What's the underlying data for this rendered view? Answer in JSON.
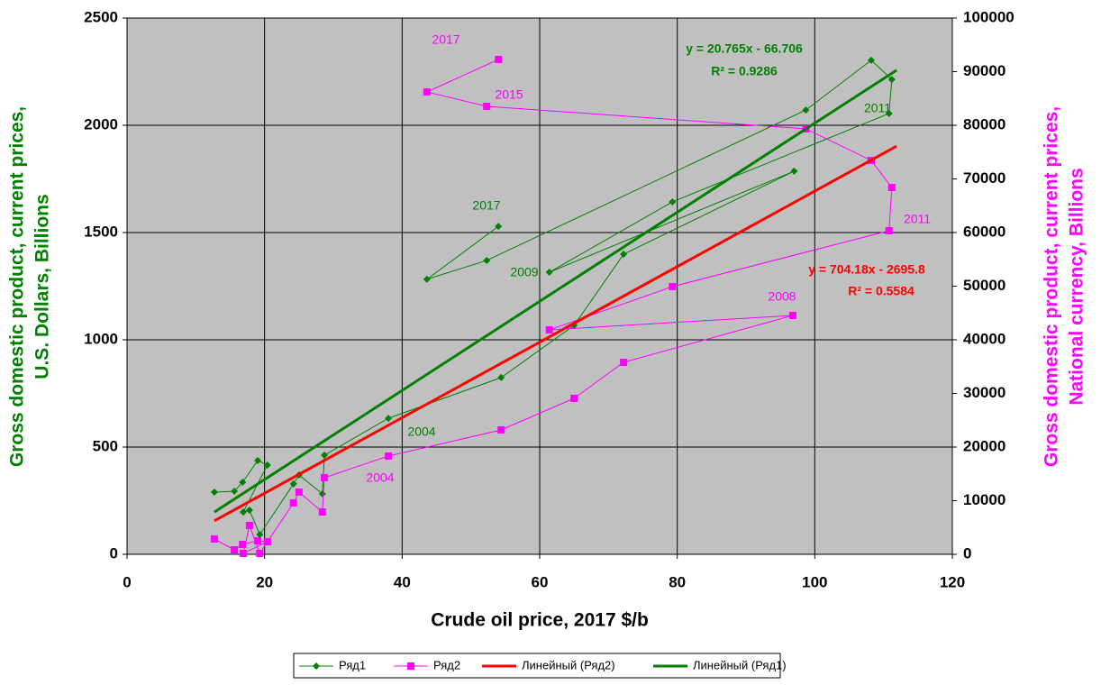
{
  "chart_data": {
    "type": "scatter",
    "x_label": "Crude oil price, 2017 $/b",
    "y_label": [
      "Gross domestic product, current prices,",
      "U.S. Dollars, Billions"
    ],
    "y2_label": [
      "Gross domestic product, current prices,",
      "National currency, Billions"
    ],
    "xlim": [
      0,
      120
    ],
    "xticks": [
      0,
      20,
      40,
      60,
      80,
      100,
      120
    ],
    "ylim": [
      0,
      2500
    ],
    "yticks": [
      0,
      500,
      1000,
      1500,
      2000,
      2500
    ],
    "y2lim": [
      0,
      100000
    ],
    "y2ticks": [
      0,
      10000,
      20000,
      30000,
      40000,
      50000,
      60000,
      70000,
      80000,
      90000,
      100000
    ],
    "grid": true,
    "legend": "bottom",
    "series": [
      {
        "name": "Ряд1",
        "color": "#008000",
        "marker": "diamond",
        "x": [
          12.7,
          15.6,
          16.8,
          19.0,
          20.4,
          16.9,
          17.8,
          19.3,
          24.2,
          25.0,
          28.4,
          28.7,
          38.0,
          54.4,
          65.0,
          72.2,
          97.0,
          61.4,
          79.3,
          110.8,
          111.2,
          108.2,
          98.7,
          52.3,
          43.6,
          54.0
        ],
        "values": [
          290,
          294,
          336,
          437,
          416,
          197,
          206,
          92,
          328,
          370,
          282,
          462,
          634,
          824,
          1067,
          1399,
          1786,
          1315,
          1643,
          2055,
          2214,
          2303,
          2071,
          1370,
          1282,
          1529
        ]
      },
      {
        "name": "Ряд2",
        "color": "#ff00ff",
        "marker": "square",
        "axis": "y2",
        "x": [
          12.7,
          15.6,
          16.8,
          19.0,
          20.4,
          16.9,
          17.8,
          19.3,
          24.2,
          25.0,
          28.4,
          28.7,
          38.0,
          54.4,
          65.0,
          72.2,
          96.8,
          61.4,
          79.3,
          110.8,
          111.2,
          108.2,
          98.7,
          52.3,
          43.6,
          54.0
        ],
        "values": [
          2857,
          840,
          1850,
          2520,
          2350,
          170,
          5380,
          170,
          9580,
          11600,
          7900,
          14290,
          18320,
          23190,
          29080,
          35800,
          44540,
          41850,
          49920,
          60340,
          68400,
          73450,
          79330,
          83530,
          86220,
          92270
        ]
      },
      {
        "name": "Линейный (Ряд2)",
        "color": "#ff0000",
        "axis": "y2",
        "x": [
          12.7,
          111.9
        ],
        "values": [
          6247,
          76102
        ]
      },
      {
        "name": "Линейный (Ряд1)",
        "color": "#008000",
        "x": [
          12.7,
          111.9
        ],
        "values": [
          197,
          2257
        ]
      }
    ],
    "annotations": [
      {
        "text": "2017",
        "color": "#008000"
      },
      {
        "text": "2009",
        "color": "#008000"
      },
      {
        "text": "2004",
        "color": "#008000"
      },
      {
        "text": "2011",
        "color": "#008000"
      },
      {
        "text": "2017",
        "color": "#ff00ff"
      },
      {
        "text": "2015",
        "color": "#ff00ff"
      },
      {
        "text": "2011",
        "color": "#ff00ff"
      },
      {
        "text": "2008",
        "color": "#ff00ff"
      },
      {
        "text": "2004",
        "color": "#ff00ff"
      }
    ],
    "equations": [
      {
        "text": "y = 20.765x - 66.706",
        "r2": "R² = 0.9286",
        "color": "#008000"
      },
      {
        "text": "y = 704.18x - 2695.8",
        "r2": "R² = 0.5584",
        "color": "#ff0000"
      }
    ]
  }
}
